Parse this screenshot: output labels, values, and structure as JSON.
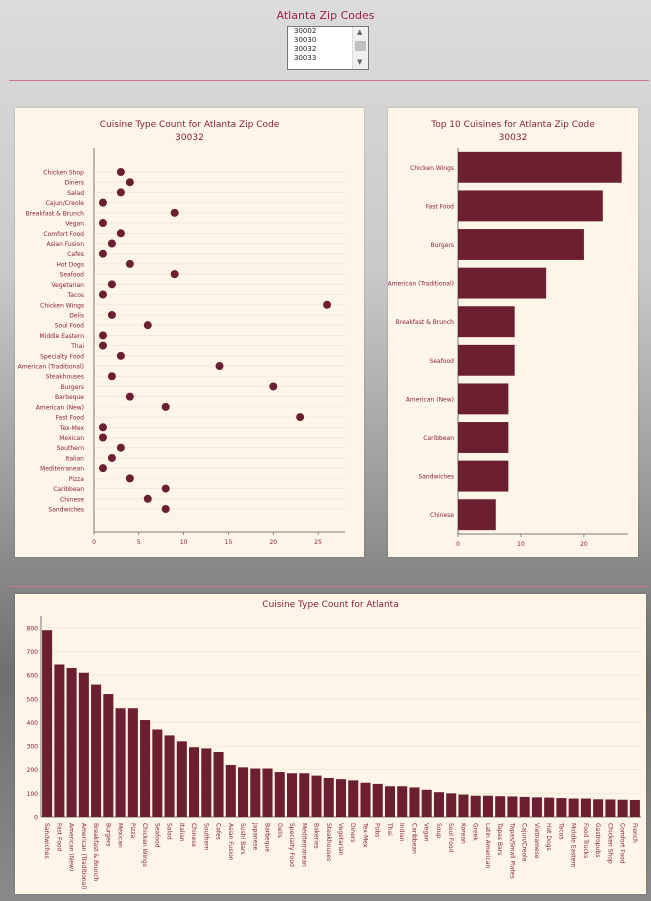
{
  "header": {
    "title": "Atlanta Zip Codes",
    "zip_options": [
      "30002",
      "30030",
      "30032",
      "30033"
    ],
    "selected_zip": "30032"
  },
  "colors": {
    "bar": "#6b1f30",
    "text": "#8a2040",
    "panel": "#fdf5e8"
  },
  "chart_data": [
    {
      "type": "scatter",
      "title": "Cuisine Type Count for Atlanta Zip Code",
      "subtitle": "30032",
      "categories": [
        "Chicken Shop",
        "Diners",
        "Salad",
        "Cajun/Creole",
        "Breakfast & Brunch",
        "Vegan",
        "Comfort Food",
        "Asian Fusion",
        "Cafes",
        "Hot Dogs",
        "Seafood",
        "Vegetarian",
        "Tacos",
        "Chicken Wings",
        "Delis",
        "Soul Food",
        "Middle Eastern",
        "Thai",
        "Specialty Food",
        "American (Traditional)",
        "Steakhouses",
        "Burgers",
        "Barbeque",
        "American (New)",
        "Fast Food",
        "Tex-Mex",
        "Mexican",
        "Southern",
        "Italian",
        "Mediterranean",
        "Pizza",
        "Caribbean",
        "Chinese",
        "Sandwiches"
      ],
      "values": [
        3,
        4,
        3,
        1,
        9,
        1,
        3,
        2,
        1,
        4,
        9,
        2,
        1,
        26,
        2,
        6,
        1,
        1,
        3,
        14,
        2,
        20,
        4,
        8,
        23,
        1,
        1,
        3,
        2,
        1,
        4,
        8,
        6,
        8
      ],
      "xticks": [
        0,
        5,
        10,
        15,
        20,
        25
      ],
      "xlim": [
        0,
        28
      ]
    },
    {
      "type": "bar",
      "orientation": "horizontal",
      "title": "Top 10 Cuisines for Atlanta Zip Code",
      "subtitle": "30032",
      "categories": [
        "Chicken Wings",
        "Fast Food",
        "Burgers",
        "American (Traditional)",
        "Breakfast & Brunch",
        "Seafood",
        "American (New)",
        "Caribbean",
        "Sandwiches",
        "Chinese"
      ],
      "values": [
        26,
        23,
        20,
        14,
        9,
        9,
        8,
        8,
        8,
        6
      ],
      "xticks": [
        0,
        10,
        20
      ],
      "xlim": [
        0,
        27
      ]
    },
    {
      "type": "bar",
      "title": "Cuisine Type Count for Atlanta",
      "categories": [
        "Sandwiches",
        "Fast Food",
        "American (New)",
        "American (Traditional)",
        "Breakfast & Brunch",
        "Burgers",
        "Mexican",
        "Pizza",
        "Chicken Wings",
        "Seafood",
        "Salad",
        "Italian",
        "Chinese",
        "Southern",
        "Cafes",
        "Asian Fusion",
        "Sushi Bars",
        "Japanese",
        "Barbeque",
        "Delis",
        "Specialty Food",
        "Mediterranean",
        "Bakeries",
        "Steakhouses",
        "Vegetarian",
        "Diners",
        "Tex-Mex",
        "Pubs",
        "Thai",
        "Indian",
        "Caribbean",
        "Vegan",
        "Soup",
        "Soul Food",
        "Korean",
        "Greek",
        "Latin American",
        "Tapas Bars",
        "Tapas/Small Plates",
        "Cajun/Creole",
        "Vietnamese",
        "Hot Dogs",
        "Tacos",
        "Middle Eastern",
        "Food Trucks",
        "Gastropubs",
        "Chicken Shop",
        "Comfort Food",
        "French"
      ],
      "values": [
        790,
        645,
        630,
        610,
        560,
        520,
        460,
        460,
        410,
        370,
        345,
        320,
        295,
        290,
        275,
        220,
        210,
        205,
        205,
        190,
        185,
        185,
        175,
        165,
        160,
        155,
        145,
        140,
        130,
        130,
        125,
        115,
        105,
        100,
        95,
        90,
        90,
        88,
        87,
        85,
        83,
        82,
        80,
        78,
        78,
        75,
        74,
        73,
        72
      ],
      "yticks": [
        0,
        100,
        200,
        300,
        400,
        500,
        600,
        700,
        800
      ],
      "ylim": [
        0,
        850
      ]
    }
  ]
}
